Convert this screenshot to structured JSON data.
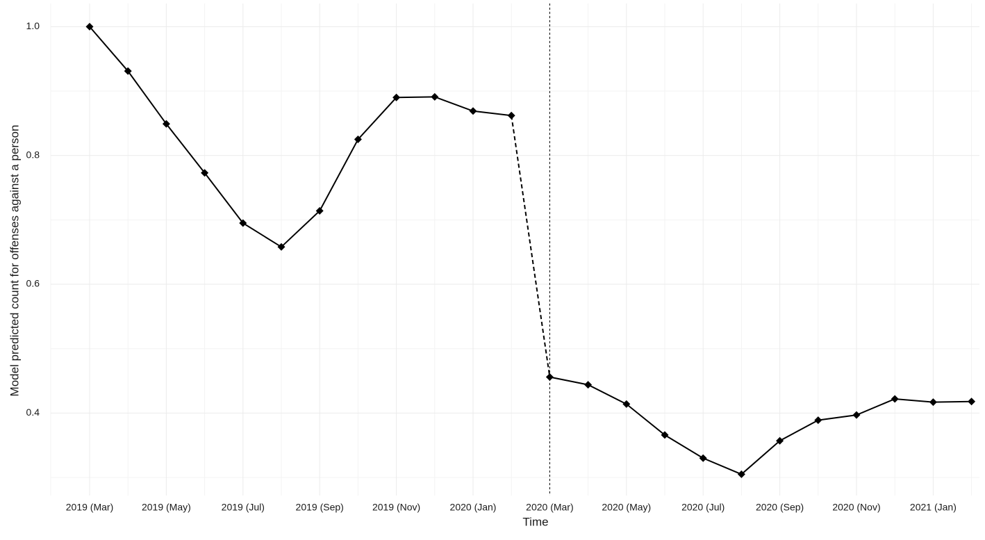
{
  "chart_data": {
    "type": "line",
    "x_label": "Time",
    "y_label": "Model predicted count for offenses against a person",
    "categories": [
      "2019 (Mar)",
      null,
      "2019 (May)",
      null,
      "2019 (Jul)",
      null,
      "2019 (Sep)",
      null,
      "2019 (Nov)",
      null,
      "2020 (Jan)",
      null,
      "2020 (Mar)",
      null,
      "2020 (May)",
      null,
      "2020 (Jul)",
      null,
      "2020 (Sep)",
      null,
      "2020 (Nov)",
      null,
      "2021 (Jan)",
      null
    ],
    "values": [
      1.0,
      0.931,
      0.849,
      0.773,
      0.695,
      0.658,
      0.714,
      0.825,
      0.89,
      0.891,
      0.869,
      0.862,
      0.456,
      0.444,
      0.414,
      0.366,
      0.33,
      0.305,
      0.357,
      0.389,
      0.397,
      0.422,
      0.417,
      0.418
    ],
    "color": "#000000",
    "interruption_index": 12,
    "ylim": [
      0.272,
      1.036
    ],
    "yticks": [
      0.4,
      0.6,
      0.8,
      {
        "value": 1,
        "label": "1.0"
      }
    ],
    "yminor": [
      0.3,
      0.5,
      0.7,
      0.9
    ],
    "grid": true
  }
}
